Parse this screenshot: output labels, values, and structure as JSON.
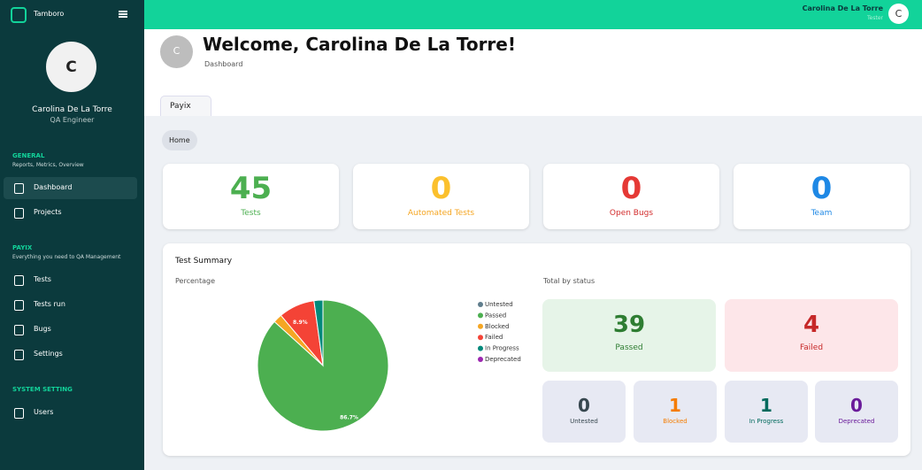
{
  "sidebar": {
    "brand": "Tamboro",
    "avatar": "C",
    "user_name": "Carolina De La Torre",
    "user_role": "QA Engineer",
    "sections": [
      {
        "title": "GENERAL",
        "subtitle": "Reports, Metrics, Overview",
        "items": [
          "Dashboard",
          "Projects"
        ]
      },
      {
        "title": "PAYIX",
        "subtitle": "Everything you need to QA Management",
        "items": [
          "Tests",
          "Tests run",
          "Bugs",
          "Settings"
        ]
      },
      {
        "title": "SYSTEM SETTING",
        "items": [
          "Users"
        ]
      }
    ]
  },
  "topbar": {
    "user_name": "Carolina De La Torre",
    "user_role": "Tester",
    "avatar": "C"
  },
  "header": {
    "avatar": "C",
    "title": "Welcome, Carolina De La Torre!",
    "subtitle": "Dashboard"
  },
  "tab": "Payix",
  "breadcrumb": "Home",
  "stats": [
    {
      "value": 45,
      "label": "Tests",
      "color": "#4caf50",
      "label_color": "#4caf50"
    },
    {
      "value": 0,
      "label": "Automated Tests",
      "color": "#fbc02d",
      "label_color": "#f5a623"
    },
    {
      "value": 0,
      "label": "Open Bugs",
      "color": "#e53935",
      "label_color": "#d32f2f"
    },
    {
      "value": 0,
      "label": "Team",
      "color": "#1e88e5",
      "label_color": "#1e88e5"
    }
  ],
  "summary": {
    "title": "Test Summary",
    "chart_data": {
      "type": "pie",
      "title": "Percentage",
      "categories": [
        "Untested",
        "Passed",
        "Blocked",
        "Failed",
        "In Progress",
        "Deprecated"
      ],
      "values": [
        0,
        86.7,
        2.2,
        8.9,
        2.2,
        0
      ],
      "value_labels": [
        null,
        "86.7%",
        null,
        "8.9%",
        null,
        null
      ],
      "colors": [
        "#5f7d8c",
        "#4caf50",
        "#f5a623",
        "#f44336",
        "#00897b",
        "#9c27b0"
      ]
    },
    "status_title": "Total by status",
    "status": [
      {
        "value": 39,
        "label": "Passed",
        "color": "#2e7d32",
        "bg": "#e6f4e8"
      },
      {
        "value": 4,
        "label": "Failed",
        "color": "#c62828",
        "bg": "#fde6e9"
      },
      {
        "value": 0,
        "label": "Untested",
        "color": "#37474f",
        "bg": "#e7e9f3"
      },
      {
        "value": 1,
        "label": "Blocked",
        "color": "#f57c00",
        "bg": "#e7e9f3"
      },
      {
        "value": 1,
        "label": "In Progress",
        "color": "#00695c",
        "bg": "#e7e9f3"
      },
      {
        "value": 0,
        "label": "Deprecated",
        "color": "#6a1b9a",
        "bg": "#e7e9f3"
      }
    ]
  }
}
